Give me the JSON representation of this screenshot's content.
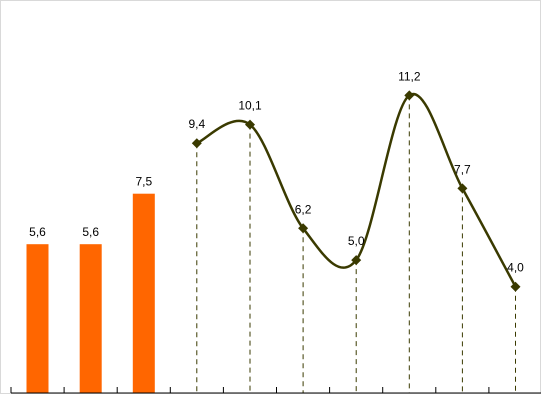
{
  "chart_data": {
    "type": "bar+line",
    "ylim": [
      0,
      14
    ],
    "grid": false,
    "legend": "none",
    "bars": {
      "values": [
        5.6,
        5.6,
        7.5
      ],
      "labels": [
        "5,6",
        "5,6",
        "7,5"
      ],
      "color": "#ff6600"
    },
    "line": {
      "values": [
        9.4,
        10.1,
        6.2,
        5.0,
        11.2,
        7.7,
        4.0
      ],
      "labels": [
        "9,4",
        "10,1",
        "6,2",
        "5,0",
        "11,2",
        "7,7",
        "4,0"
      ],
      "color": "#3a3a00",
      "smooth": true,
      "marker": "diamond",
      "drop_lines": "dashed"
    }
  }
}
